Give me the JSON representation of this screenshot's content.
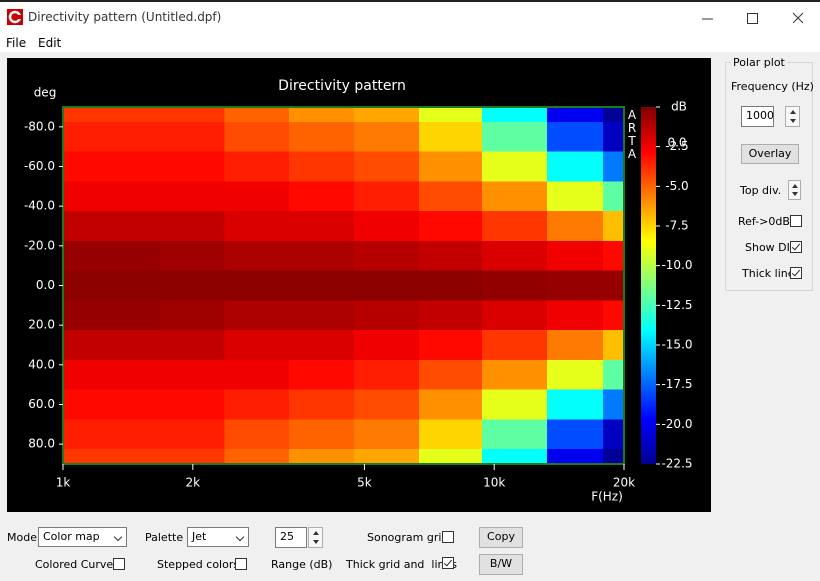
{
  "window": {
    "title": "Directivity pattern (Untitled.dpf)"
  },
  "menu": [
    "File",
    "Edit"
  ],
  "chart_data": {
    "type": "heatmap",
    "title": "Directivity pattern",
    "y_label": "deg",
    "x_label": "F(Hz)",
    "colorbar_label": "dB",
    "watermark": "ARTA",
    "x_scale": "log",
    "palette": "jet",
    "x": [
      1000,
      1400,
      2000,
      2800,
      4000,
      5600,
      8000,
      11000,
      16000,
      20000
    ],
    "y": [
      -90,
      -75,
      -60,
      -45,
      -30,
      -15,
      0,
      15,
      30,
      45,
      60,
      75,
      90
    ],
    "values": [
      [
        -4,
        -4,
        -4,
        -5,
        -6,
        -6.5,
        -9,
        -14,
        -20,
        -22
      ],
      [
        -3.5,
        -3.5,
        -3.5,
        -4.5,
        -5,
        -5.5,
        -7.5,
        -12,
        -18,
        -21
      ],
      [
        -3,
        -3,
        -3,
        -3.5,
        -4,
        -4.5,
        -6,
        -9,
        -14,
        -17
      ],
      [
        -2.5,
        -2.5,
        -2.5,
        -2.5,
        -3,
        -3.5,
        -4.5,
        -6,
        -9,
        -12
      ],
      [
        -1.5,
        -1.5,
        -1.5,
        -2,
        -2,
        -2.5,
        -3,
        -4,
        -5.5,
        -7
      ],
      [
        -0.5,
        -0.5,
        -0.7,
        -1,
        -1,
        -1.2,
        -1.5,
        -2,
        -2.5,
        -3
      ],
      [
        -0.3,
        -0.3,
        -0.3,
        -0.3,
        -0.3,
        -0.3,
        -0.3,
        -0.4,
        -0.5,
        -0.5
      ],
      [
        -0.5,
        -0.5,
        -0.7,
        -1,
        -1,
        -1.2,
        -1.5,
        -2,
        -2.5,
        -3
      ],
      [
        -1.5,
        -1.5,
        -1.5,
        -2,
        -2,
        -2.5,
        -3,
        -4,
        -5.5,
        -7
      ],
      [
        -2.5,
        -2.5,
        -2.5,
        -2.5,
        -3,
        -3.5,
        -4.5,
        -6,
        -9,
        -12
      ],
      [
        -3,
        -3,
        -3,
        -3.5,
        -4,
        -4.5,
        -6,
        -9,
        -14,
        -17
      ],
      [
        -3.5,
        -3.5,
        -3.5,
        -4.5,
        -5,
        -5.5,
        -7.5,
        -12,
        -18,
        -21
      ],
      [
        -4,
        -4,
        -4,
        -5,
        -6,
        -6.5,
        -9,
        -14,
        -20,
        -22
      ]
    ],
    "xlim": [
      1000,
      20000
    ],
    "ylim": [
      -90,
      90
    ],
    "clim": [
      -22.5,
      0
    ],
    "xticks": [
      {
        "value": 1000,
        "label": "1k"
      },
      {
        "value": 2000,
        "label": "2k"
      },
      {
        "value": 5000,
        "label": "5k"
      },
      {
        "value": 10000,
        "label": "10k"
      },
      {
        "value": 20000,
        "label": "20k"
      }
    ],
    "yticks": [
      {
        "value": -80,
        "label": "-80.0"
      },
      {
        "value": -60,
        "label": "-60.0"
      },
      {
        "value": -40,
        "label": "-40.0"
      },
      {
        "value": -20,
        "label": "-20.0"
      },
      {
        "value": 0,
        "label": "0.0"
      },
      {
        "value": 20,
        "label": "20.0"
      },
      {
        "value": 40,
        "label": "40.0"
      },
      {
        "value": 60,
        "label": "60.0"
      },
      {
        "value": 80,
        "label": "80.0"
      }
    ],
    "cticks": [
      {
        "value": 0,
        "label": "0.0"
      },
      -2.5,
      {
        "value": -5,
        "label": "-5.0"
      },
      -7.5,
      {
        "value": -10,
        "label": "-10.0"
      },
      -12.5,
      {
        "value": -15,
        "label": "-15.0"
      },
      -17.5,
      {
        "value": -20,
        "label": "-20.0"
      },
      -22.5
    ]
  },
  "sidebar": {
    "title": "Polar plot",
    "frequency_label": "Frequency (Hz)",
    "frequency": "1000",
    "overlay": "Overlay",
    "top_div": "Top div.",
    "ref_0db": {
      "label": "Ref->0dB",
      "checked": false
    },
    "show_di": {
      "label": "Show DI",
      "checked": true
    },
    "thick_line": {
      "label": "Thick line",
      "checked": true
    }
  },
  "controls": {
    "mode_label": "Mode",
    "mode": "Color map",
    "palette_label": "Palette",
    "palette": "Jet",
    "range": "25",
    "range_label": "Range (dB)",
    "sonogram_grid": {
      "label": "Sonogram grid",
      "checked": false
    },
    "colored_curves": {
      "label": "Colored Curves",
      "checked": false
    },
    "stepped_colors": {
      "label": "Stepped colors",
      "checked": false
    },
    "thick_grid": {
      "label": "Thick grid and  lines",
      "checked": true
    },
    "copy": "Copy",
    "bw": "B/W"
  }
}
